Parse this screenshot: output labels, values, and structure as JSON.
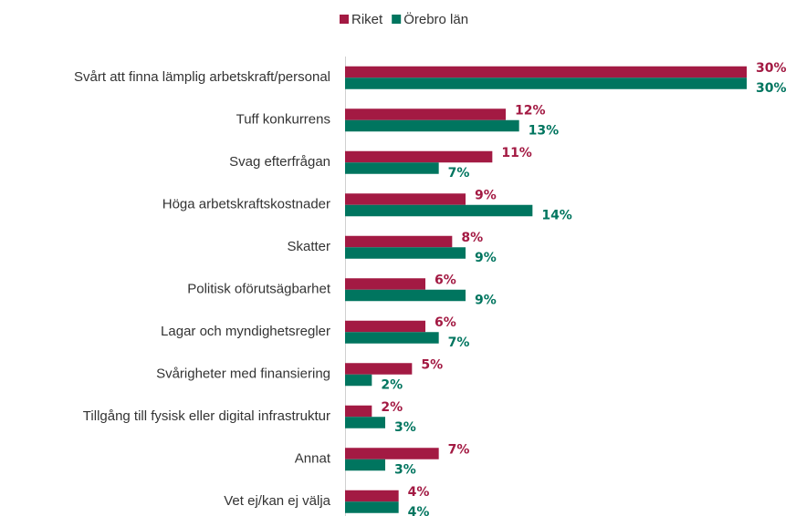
{
  "chart_data": {
    "type": "hbar",
    "categories": [
      "Svårt att finna lämplig arbetskraft/personal",
      "Tuff konkurrens",
      "Svag efterfrågan",
      "Höga arbetskraftskostnader",
      "Skatter",
      "Politisk oförutsägbarhet",
      "Lagar och myndighetsregler",
      "Svårigheter med finansiering",
      "Tillgång till fysisk eller digital infrastruktur",
      "Annat",
      "Vet ej/kan ej välja"
    ],
    "series": [
      {
        "name": "Riket",
        "color": "#a31a43",
        "values": [
          30,
          12,
          11,
          9,
          8,
          6,
          6,
          5,
          2,
          7,
          4
        ],
        "value_labels": [
          "30%",
          "12%",
          "11%",
          "9%",
          "8%",
          "6%",
          "6%",
          "5%",
          "2%",
          "7%",
          "4%"
        ]
      },
      {
        "name": "Örebro län",
        "color": "#00755f",
        "values": [
          30,
          13,
          7,
          14,
          9,
          9,
          7,
          2,
          3,
          3,
          4
        ],
        "value_labels": [
          "30%",
          "13%",
          "7%",
          "14%",
          "9%",
          "9%",
          "7%",
          "2%",
          "3%",
          "3%",
          "4%"
        ]
      }
    ],
    "legend": "top"
  }
}
